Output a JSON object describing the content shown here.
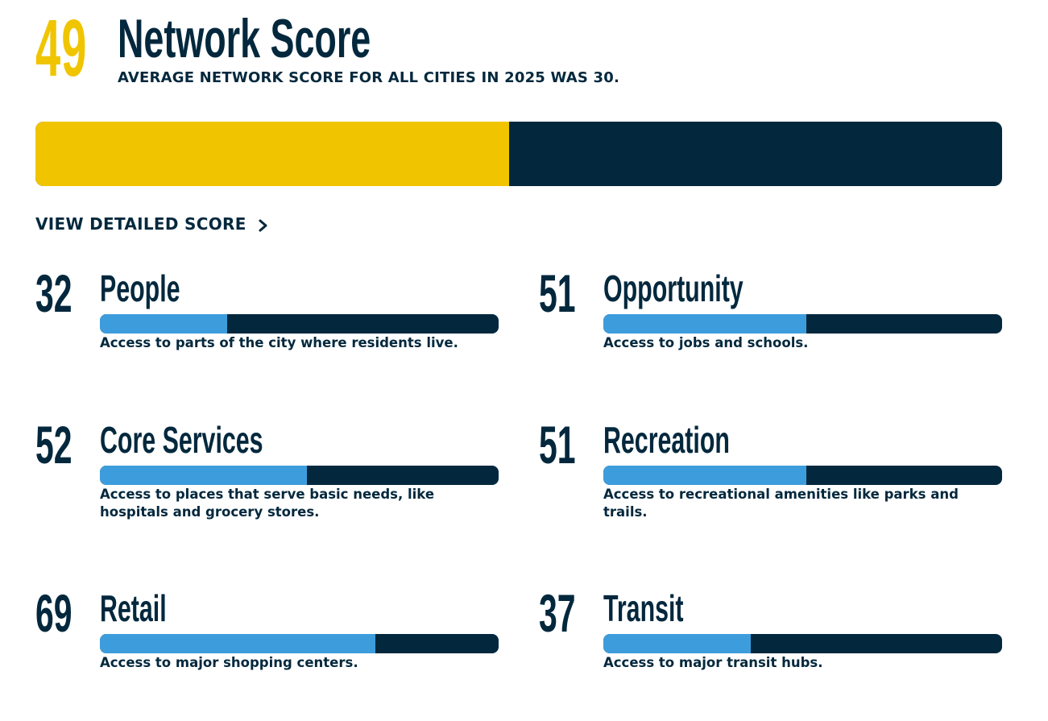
{
  "colors": {
    "navy": "#03283d",
    "yellow": "#f0c500",
    "blue": "#3d9ddc"
  },
  "header": {
    "score": "49",
    "score_fraction": 0.49,
    "title": "Network Score",
    "subtitle": "AVERAGE NETWORK SCORE FOR ALL CITIES IN 2025 WAS 30."
  },
  "detail_link": {
    "label": "VIEW DETAILED SCORE",
    "icon": "chevron-right-icon"
  },
  "categories": [
    {
      "key": "people",
      "score": "32",
      "fraction": 0.32,
      "title": "People",
      "description": "Access to parts of the city where residents live."
    },
    {
      "key": "opportunity",
      "score": "51",
      "fraction": 0.51,
      "title": "Opportunity",
      "description": "Access to jobs and schools."
    },
    {
      "key": "core-services",
      "score": "52",
      "fraction": 0.52,
      "title": "Core Services",
      "description": "Access to places that serve basic needs, like hospitals and grocery stores."
    },
    {
      "key": "recreation",
      "score": "51",
      "fraction": 0.51,
      "title": "Recreation",
      "description": "Access to recreational amenities like parks and trails."
    },
    {
      "key": "retail",
      "score": "69",
      "fraction": 0.69,
      "title": "Retail",
      "description": "Access to major shopping centers."
    },
    {
      "key": "transit",
      "score": "37",
      "fraction": 0.37,
      "title": "Transit",
      "description": "Access to major transit hubs."
    }
  ]
}
